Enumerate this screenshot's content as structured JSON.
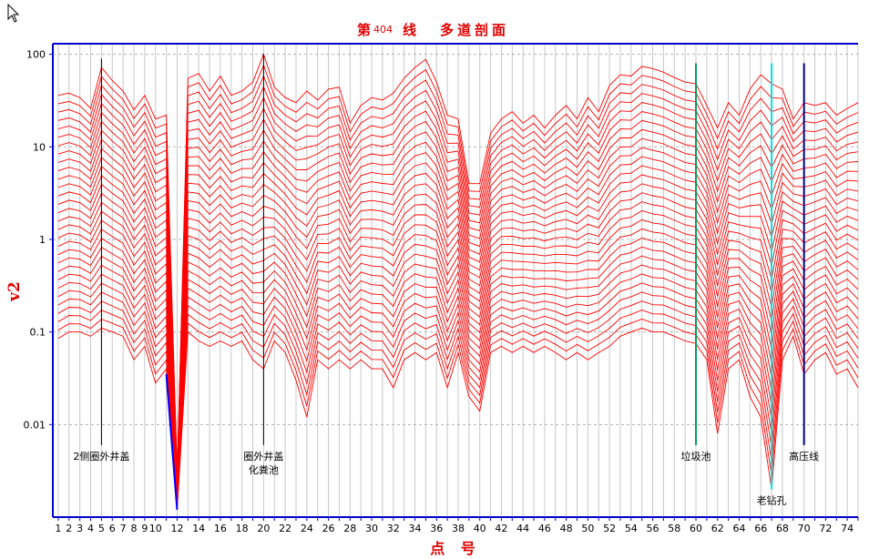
{
  "title": {
    "prefix": "第",
    "line_no": "404",
    "suffix": "线",
    "subtitle": "多道剖面"
  },
  "chart_data": {
    "type": "line",
    "ylabel": "v2",
    "xlabel": "点 号",
    "yscale": "log",
    "ylim": [
      0.001,
      130
    ],
    "xlim": [
      0.5,
      75
    ],
    "ytick_labels": [
      "100",
      "10",
      "1",
      "0.1",
      "0.01"
    ],
    "ytick_values": [
      100,
      10,
      1,
      0.1,
      0.01
    ],
    "xtick_labels": [
      "1",
      "2",
      "3",
      "4",
      "5",
      "6",
      "7",
      "8",
      "9",
      "10",
      "12",
      "14",
      "16",
      "18",
      "20",
      "22",
      "24",
      "26",
      "28",
      "30",
      "32",
      "34",
      "36",
      "38",
      "40",
      "42",
      "44",
      "46",
      "48",
      "50",
      "52",
      "54",
      "56",
      "58",
      "60",
      "62",
      "64",
      "66",
      "68",
      "70",
      "72",
      "74"
    ],
    "xtick_values": [
      1,
      2,
      3,
      4,
      5,
      6,
      7,
      8,
      9,
      10,
      12,
      14,
      16,
      18,
      20,
      22,
      24,
      26,
      28,
      30,
      32,
      34,
      36,
      38,
      40,
      42,
      44,
      46,
      48,
      50,
      52,
      54,
      56,
      58,
      60,
      62,
      64,
      66,
      68,
      70,
      72,
      74
    ],
    "grid": true,
    "channels": 30,
    "series_color": "#ff0000",
    "profile": {
      "x": [
        1,
        2,
        3,
        4,
        5,
        6,
        7,
        8,
        9,
        10,
        11,
        12,
        13,
        14,
        15,
        16,
        17,
        18,
        19,
        20,
        21,
        22,
        23,
        24,
        25,
        26,
        27,
        28,
        29,
        30,
        31,
        32,
        33,
        34,
        35,
        36,
        37,
        38,
        39,
        40,
        41,
        42,
        43,
        44,
        45,
        46,
        47,
        48,
        49,
        50,
        51,
        52,
        53,
        54,
        55,
        56,
        57,
        58,
        59,
        60,
        61,
        62,
        63,
        64,
        65,
        66,
        67,
        68,
        69,
        70,
        71,
        72,
        73,
        74,
        75
      ],
      "top": [
        36,
        38,
        34,
        26,
        72,
        52,
        40,
        25,
        36,
        20,
        22,
        0.003,
        55,
        62,
        40,
        58,
        36,
        40,
        50,
        100,
        44,
        34,
        30,
        40,
        32,
        42,
        44,
        18,
        28,
        34,
        32,
        38,
        55,
        72,
        88,
        50,
        22,
        20,
        4,
        4,
        14,
        20,
        24,
        18,
        22,
        16,
        22,
        28,
        20,
        34,
        24,
        46,
        60,
        58,
        74,
        70,
        64,
        56,
        50,
        48,
        28,
        16,
        30,
        22,
        42,
        60,
        48,
        42,
        20,
        30,
        28,
        30,
        22,
        26,
        30
      ],
      "bottom": [
        0.085,
        0.1,
        0.1,
        0.09,
        0.11,
        0.1,
        0.09,
        0.05,
        0.07,
        0.028,
        0.04,
        0.0012,
        0.1,
        0.08,
        0.07,
        0.08,
        0.07,
        0.08,
        0.05,
        0.04,
        0.08,
        0.06,
        0.03,
        0.012,
        0.05,
        0.04,
        0.05,
        0.04,
        0.05,
        0.04,
        0.04,
        0.025,
        0.05,
        0.06,
        0.05,
        0.06,
        0.025,
        0.06,
        0.02,
        0.014,
        0.06,
        0.07,
        0.06,
        0.07,
        0.06,
        0.07,
        0.06,
        0.05,
        0.06,
        0.05,
        0.06,
        0.07,
        0.09,
        0.1,
        0.11,
        0.1,
        0.1,
        0.09,
        0.08,
        0.075,
        0.05,
        0.008,
        0.04,
        0.05,
        0.02,
        0.012,
        0.002,
        0.05,
        0.09,
        0.035,
        0.05,
        0.06,
        0.035,
        0.04,
        0.025
      ]
    },
    "markers": [
      {
        "x": 5,
        "color": "#000000",
        "top": 90,
        "bottom": 0.006,
        "label_lines": [
          "2侧圈外井盖"
        ]
      },
      {
        "x": 20,
        "color": "#000000",
        "top": 100,
        "bottom": 0.006,
        "label_lines": [
          "圈外井盖",
          "化粪池"
        ]
      },
      {
        "x": 60,
        "color": "#00a060",
        "top": 80,
        "bottom": 0.006,
        "label_lines": [
          "垃圾池"
        ]
      },
      {
        "x": 67,
        "color": "#00e0e0",
        "top": 80,
        "bottom": 0.002,
        "label_lines": [
          "老钻孔"
        ]
      },
      {
        "x": 70,
        "color": "#00008b",
        "top": 80,
        "bottom": 0.006,
        "label_lines": [
          "高压线"
        ]
      }
    ],
    "blue_segment": {
      "x": [
        11,
        12
      ],
      "y": [
        0.035,
        0.0012
      ],
      "color": "#0000ff"
    }
  }
}
